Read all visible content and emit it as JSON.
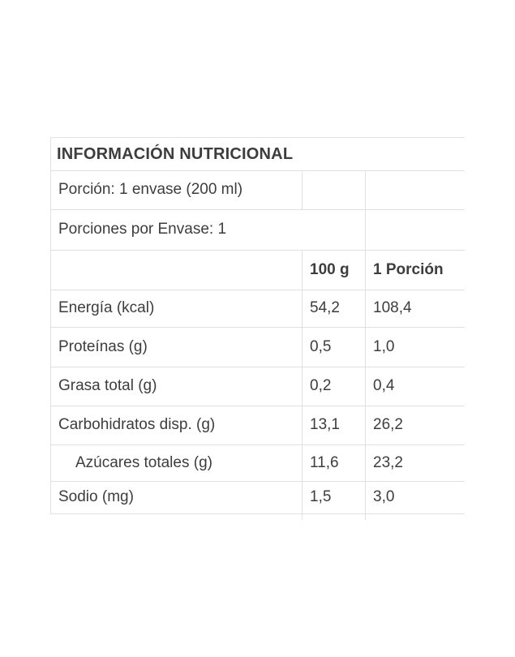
{
  "page": {
    "background": "#ffffff"
  },
  "table": {
    "title": "INFORMACIÓN NUTRICIONAL",
    "serving_info": "Porción: 1 envase (200 ml)",
    "servings_per_container": "Porciones por Envase: 1",
    "columns": {
      "per_100g": "100 g",
      "per_portion": "1 Porción"
    },
    "rows": [
      {
        "label": "Energía (kcal)",
        "per_100g": "54,2",
        "per_portion": "108,4"
      },
      {
        "label": "Proteínas (g)",
        "per_100g": "0,5",
        "per_portion": "1,0"
      },
      {
        "label": "Grasa total (g)",
        "per_100g": "0,2",
        "per_portion": "0,4"
      },
      {
        "label": "Carbohidratos disp. (g)",
        "per_100g": "13,1",
        "per_portion": "26,2"
      },
      {
        "label": "Azúcares totales (g)",
        "per_100g": "11,6",
        "per_portion": "23,2"
      },
      {
        "label": "Sodio (mg)",
        "per_100g": "1,5",
        "per_portion": "3,0"
      }
    ],
    "colors": {
      "text": "#3d3d3d",
      "border": "#e0e0e0",
      "background": "#ffffff"
    }
  }
}
